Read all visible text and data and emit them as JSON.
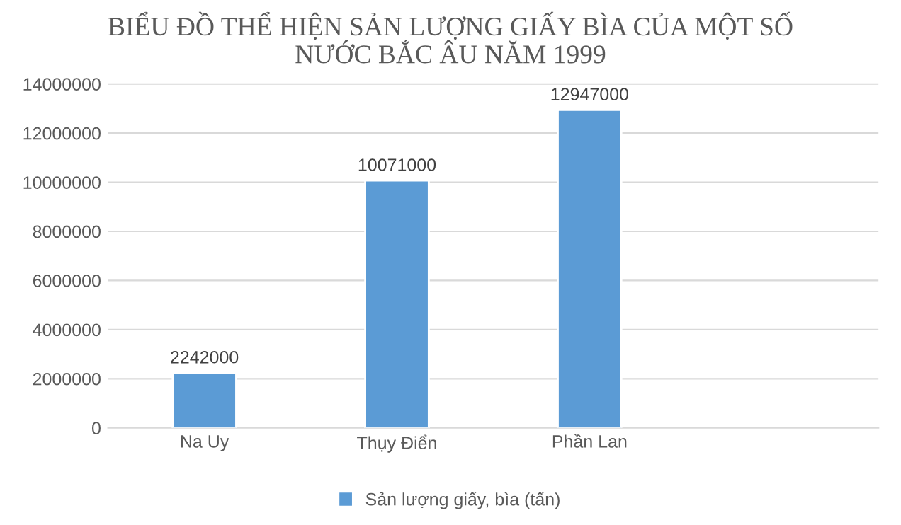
{
  "chart_data": {
    "type": "bar",
    "title": "BIỂU ĐỒ THỂ HIỆN SẢN LƯỢNG GIẤY BÌA CỦA MỘT SỐ\nNƯỚC BẮC ÂU NĂM 1999",
    "categories": [
      "Na Uy",
      "Thụy Điển",
      "Phần Lan",
      null
    ],
    "series": [
      {
        "name": "Sản lượng giấy, bìa (tấn)",
        "color": "#5b9bd5",
        "values": [
          2242000,
          10071000,
          12947000,
          null
        ]
      }
    ],
    "ylim": [
      0,
      14000000
    ],
    "yticks": [
      0,
      2000000,
      4000000,
      6000000,
      8000000,
      10000000,
      12000000,
      14000000
    ],
    "grid": "y",
    "legend": "bottom",
    "data_labels": true
  }
}
